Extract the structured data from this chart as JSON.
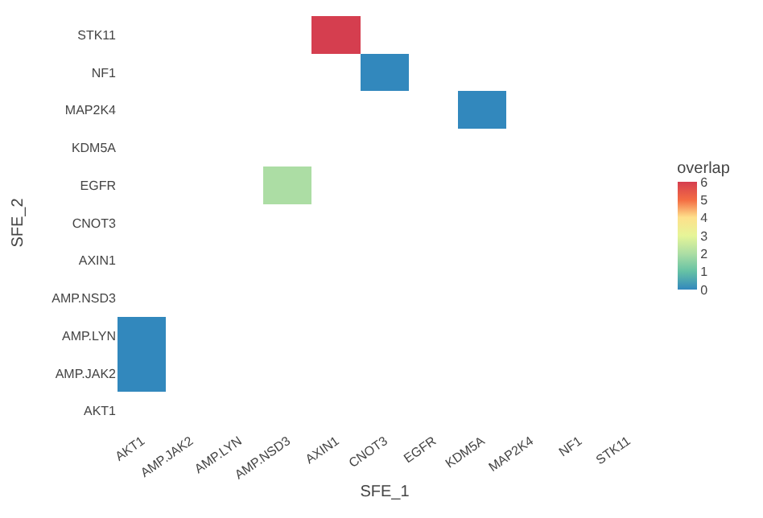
{
  "chart_data": {
    "type": "heatmap",
    "xlabel": "SFE_1",
    "ylabel": "SFE_2",
    "clabel": "overlap",
    "categories": [
      "AKT1",
      "AMP.JAK2",
      "AMP.LYN",
      "AMP.NSD3",
      "AXIN1",
      "CNOT3",
      "EGFR",
      "KDM5A",
      "MAP2K4",
      "NF1",
      "STK11"
    ],
    "y_categories": [
      "STK11",
      "NF1",
      "MAP2K4",
      "KDM5A",
      "EGFR",
      "CNOT3",
      "AXIN1",
      "AMP.NSD3",
      "AMP.LYN",
      "AMP.JAK2",
      "AKT1"
    ],
    "cells": [
      [
        null,
        null,
        null,
        null,
        6,
        null,
        null,
        null,
        null,
        null,
        null
      ],
      [
        null,
        null,
        null,
        null,
        null,
        0,
        null,
        null,
        null,
        null,
        null
      ],
      [
        null,
        null,
        null,
        null,
        null,
        null,
        null,
        0,
        null,
        null,
        null
      ],
      [
        null,
        null,
        null,
        null,
        null,
        null,
        null,
        null,
        null,
        null,
        null
      ],
      [
        null,
        null,
        null,
        2,
        null,
        null,
        null,
        null,
        null,
        null,
        null
      ],
      [
        null,
        null,
        null,
        null,
        null,
        null,
        null,
        null,
        null,
        null,
        null
      ],
      [
        null,
        null,
        null,
        null,
        null,
        null,
        null,
        null,
        null,
        null,
        null
      ],
      [
        null,
        null,
        null,
        null,
        null,
        null,
        null,
        null,
        null,
        null,
        null
      ],
      [
        0,
        null,
        null,
        null,
        null,
        null,
        null,
        null,
        null,
        null,
        null
      ],
      [
        0,
        null,
        null,
        null,
        null,
        null,
        null,
        null,
        null,
        null,
        null
      ],
      [
        null,
        null,
        null,
        null,
        null,
        null,
        null,
        null,
        null,
        null,
        null
      ]
    ],
    "clim": [
      0,
      6
    ],
    "cticks": [
      0,
      1,
      2,
      3,
      4,
      5,
      6
    ]
  }
}
